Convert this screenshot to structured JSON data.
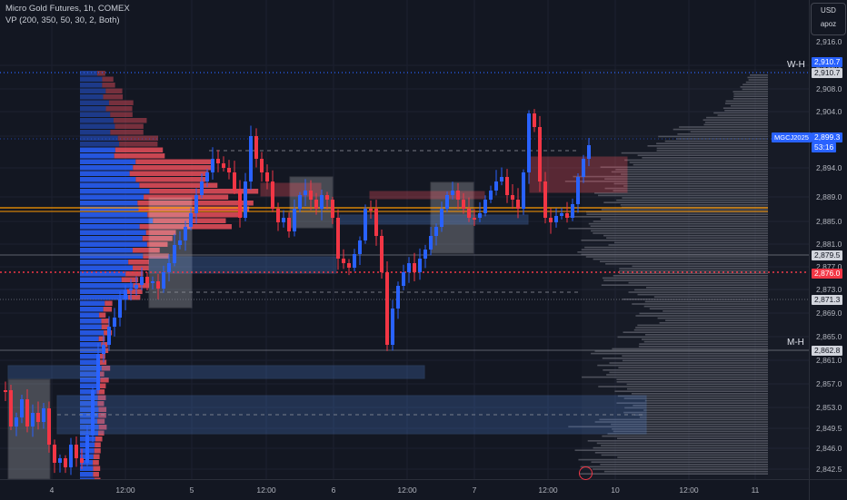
{
  "legend": {
    "symbol": "Micro Gold Futures, 1h, COMEX",
    "indicator": "VP (200, 350, 50, 30, 2, Both)"
  },
  "currency": {
    "code": "USD",
    "sub": "apoz"
  },
  "price_axis": {
    "ticks": [
      "2,916.0",
      "2,912.0",
      "2,908.0",
      "2,904.0",
      "2,898.0",
      "2,894.0",
      "2,889.0",
      "2,885.0",
      "2,881.0",
      "2,877.0",
      "2,873.0",
      "2,869.0",
      "2,865.0",
      "2,861.0",
      "2,857.0",
      "2,853.0",
      "2,849.5",
      "2,846.0",
      "2,842.5"
    ]
  },
  "time_axis": {
    "labels": [
      "4",
      "12:00",
      "5",
      "12:00",
      "6",
      "12:00",
      "7",
      "12:00",
      "10",
      "12:00",
      "11"
    ]
  },
  "price_tags": {
    "wh_top": "2,910.7",
    "wh_bottom": "2,910.7",
    "symbol_name": "MGCJ2025",
    "last_price": "2,899.3",
    "countdown": "53:16",
    "level_a": "2,879.5",
    "level_red": "2,876.0",
    "level_b": "2,871.3",
    "mh": "2,862.8"
  },
  "levels": {
    "weekly_high_label": "W-H",
    "monthly_high_label": "M-H"
  },
  "colors": {
    "bull": "#2962ff",
    "bear": "#f23645",
    "bg": "#131722",
    "accent_line": "#ff9800"
  },
  "icons": {
    "watermark": "tradingview-logo-icon"
  }
}
